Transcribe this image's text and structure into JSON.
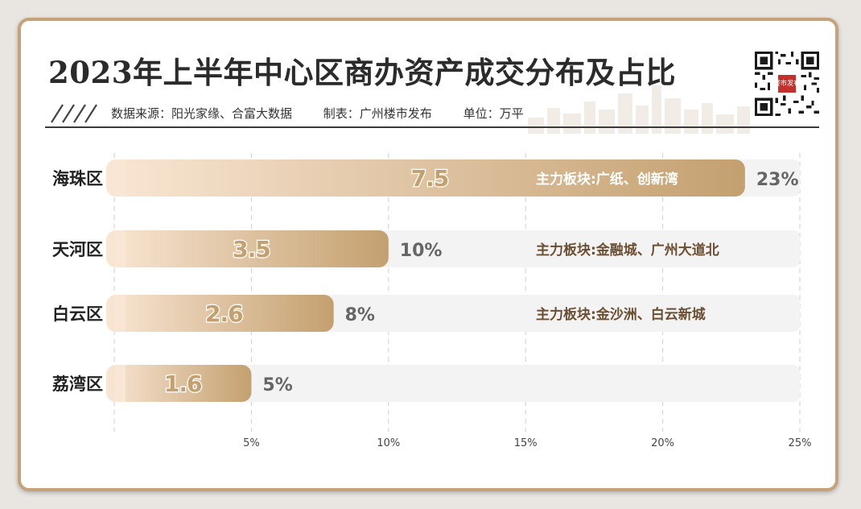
{
  "header": {
    "title": "2023年上半年中心区商办资产成交分布及占比",
    "source": "数据来源：阳光家缘、合富大数据",
    "maker": "制表：广州楼市发布",
    "unit": "单位：万平",
    "logo_text": "楼市发布"
  },
  "colors": {
    "bar_start": "#f9e6d4",
    "bar_end": "#c4a06f",
    "track": "#f3f3f3",
    "label_text": "#6a4f33",
    "border": "#c6a27a"
  },
  "chart_data": {
    "type": "bar",
    "orientation": "horizontal",
    "categories": [
      "海珠区",
      "天河区",
      "白云区",
      "荔湾区"
    ],
    "values": [
      7.5,
      3.5,
      2.6,
      1.6
    ],
    "value_labels": [
      "7.5",
      "3.5",
      "2.6",
      "1.6"
    ],
    "share_labels": [
      "23%",
      "10%",
      "8%",
      "5%"
    ],
    "share_values": [
      23,
      10,
      8,
      5
    ],
    "annotations": [
      "主力板块:广纸、创新湾",
      "主力板块:金融城、广州大道北",
      "主力板块:金沙洲、白云新城",
      ""
    ],
    "x_ticks": [
      5,
      10,
      15,
      20,
      25
    ],
    "x_tick_labels": [
      "5%",
      "10%",
      "15%",
      "20%",
      "25%"
    ],
    "xlim": [
      0,
      25
    ],
    "grid": "vertical-dashed"
  }
}
